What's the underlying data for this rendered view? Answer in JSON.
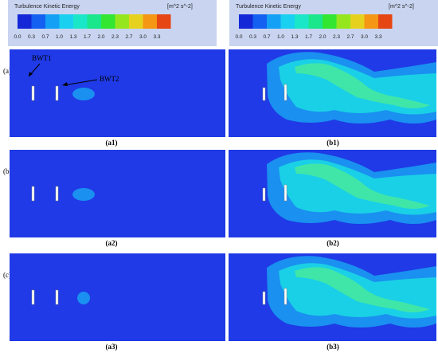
{
  "colorbars": [
    {
      "title": "Turbulence Kinetic Energy",
      "unit": "[m^2 s^-2]",
      "ticks": [
        "0.0",
        "0.3",
        "0.7",
        "1.0",
        "1.3",
        "1.7",
        "2.0",
        "2.3",
        "2.7",
        "3.0",
        "3.3"
      ]
    },
    {
      "title": "Turbulence Kinetic Energy",
      "unit": "[m^2 s^-2]",
      "ticks": [
        "0.0",
        "0.3",
        "0.7",
        "1.0",
        "1.3",
        "1.7",
        "2.0",
        "2.3",
        "2.7",
        "3.0",
        "3.3"
      ]
    }
  ],
  "rows": [
    {
      "label": "(a)",
      "panels": [
        "(a1)",
        "(b1)"
      ]
    },
    {
      "label": "(b)",
      "panels": [
        "(a2)",
        "(b2)"
      ]
    },
    {
      "label": "(c)",
      "panels": [
        "(a3)",
        "(b3)"
      ]
    }
  ],
  "annotations": [
    "BWT1",
    "BWT2"
  ]
}
